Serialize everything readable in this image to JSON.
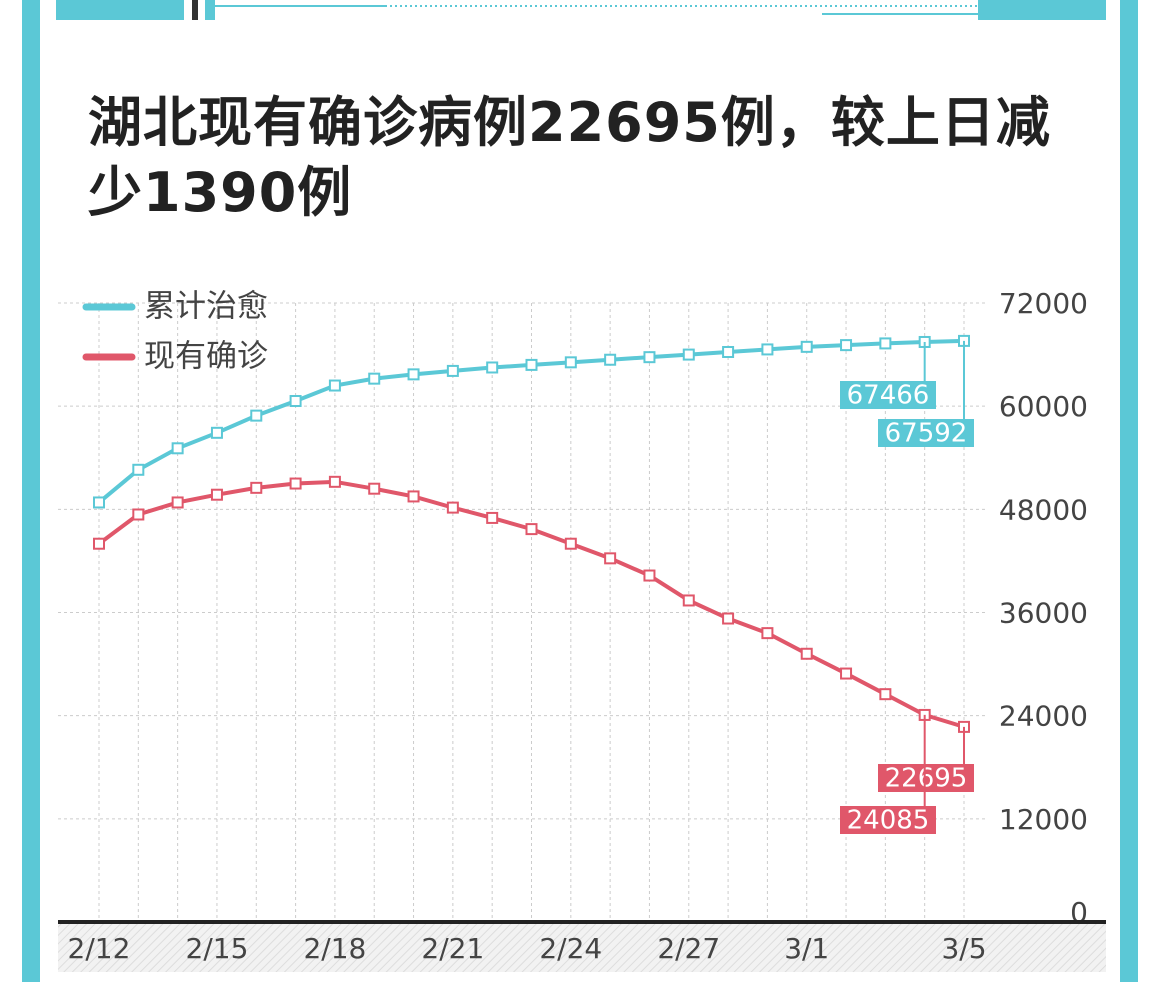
{
  "chart_data": {
    "type": "line",
    "title": "湖北现有确诊病例22695例，较上日减少1390例",
    "categories": [
      "2/12",
      null,
      null,
      "2/15",
      null,
      null,
      "2/18",
      null,
      null,
      "2/21",
      null,
      null,
      "2/24",
      null,
      null,
      "2/27",
      null,
      null,
      "3/1",
      null,
      null,
      null,
      "3/5"
    ],
    "series": [
      {
        "name": "累计治愈",
        "color": "#5bc8d6",
        "values": [
          48800,
          52600,
          55100,
          56900,
          58900,
          60600,
          62400,
          63200,
          63700,
          64100,
          64500,
          64800,
          65100,
          65400,
          65700,
          66000,
          66300,
          66600,
          66900,
          67100,
          67300,
          67466,
          67592
        ]
      },
      {
        "name": "现有确诊",
        "color": "#e0576a",
        "values": [
          44000,
          47400,
          48800,
          49700,
          50500,
          51000,
          51200,
          50400,
          49500,
          48200,
          47000,
          45700,
          44000,
          42300,
          40300,
          37400,
          35300,
          33600,
          31200,
          28900,
          26500,
          24085,
          22695
        ]
      }
    ],
    "ylim": [
      0,
      72000
    ],
    "yticks": [
      0,
      12000,
      24000,
      36000,
      48000,
      60000,
      72000
    ],
    "grid": true
  }
}
